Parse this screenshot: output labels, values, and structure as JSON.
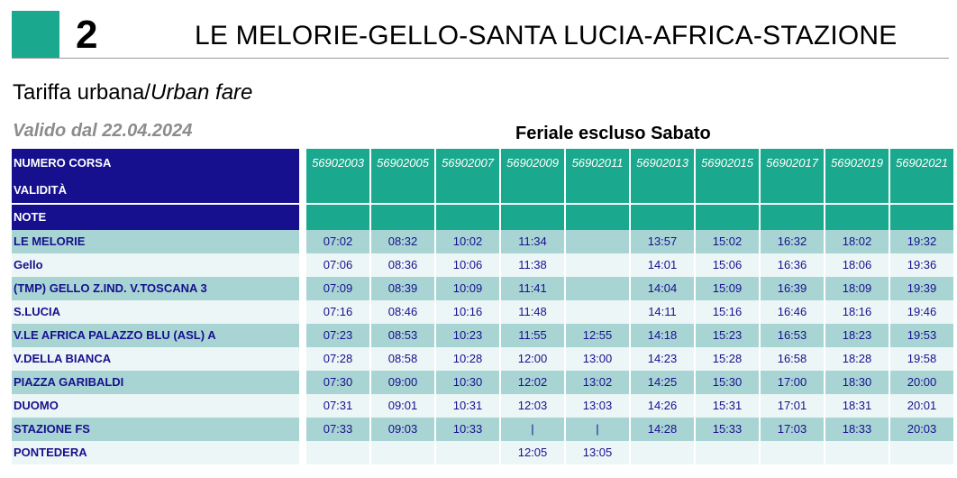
{
  "header": {
    "route_number": "2",
    "route_name": "LE MELORIE-GELLO-SANTA LUCIA-AFRICA-STAZIONE",
    "fare_main": "Tariffa urbana/",
    "fare_english": "Urban fare",
    "valid_from": "Valido dal 22.04.2024",
    "service_day": "Feriale escluso Sabato"
  },
  "colors": {
    "route": "#1aa98e",
    "header_blue": "#16108e",
    "row_dark": "#a9d4d4",
    "row_light": "#edf6f6"
  },
  "labels": {
    "trip_number": "NUMERO CORSA",
    "validity": "VALIDITÀ",
    "notes": "NOTE"
  },
  "trips": [
    "56902003",
    "56902005",
    "56902007",
    "56902009",
    "56902011",
    "56902013",
    "56902015",
    "56902017",
    "56902019",
    "56902021"
  ],
  "stops": [
    {
      "name": "LE MELORIE",
      "times": [
        "07:02",
        "08:32",
        "10:02",
        "11:34",
        "",
        "13:57",
        "15:02",
        "16:32",
        "18:02",
        "19:32"
      ]
    },
    {
      "name": "Gello",
      "times": [
        "07:06",
        "08:36",
        "10:06",
        "11:38",
        "",
        "14:01",
        "15:06",
        "16:36",
        "18:06",
        "19:36"
      ]
    },
    {
      "name": "(TMP) GELLO Z.IND. V.TOSCANA 3",
      "times": [
        "07:09",
        "08:39",
        "10:09",
        "11:41",
        "",
        "14:04",
        "15:09",
        "16:39",
        "18:09",
        "19:39"
      ]
    },
    {
      "name": "S.LUCIA",
      "times": [
        "07:16",
        "08:46",
        "10:16",
        "11:48",
        "",
        "14:11",
        "15:16",
        "16:46",
        "18:16",
        "19:46"
      ]
    },
    {
      "name": "V.LE AFRICA PALAZZO BLU (ASL) A",
      "times": [
        "07:23",
        "08:53",
        "10:23",
        "11:55",
        "12:55",
        "14:18",
        "15:23",
        "16:53",
        "18:23",
        "19:53"
      ]
    },
    {
      "name": "V.DELLA BIANCA",
      "times": [
        "07:28",
        "08:58",
        "10:28",
        "12:00",
        "13:00",
        "14:23",
        "15:28",
        "16:58",
        "18:28",
        "19:58"
      ]
    },
    {
      "name": "PIAZZA GARIBALDI",
      "times": [
        "07:30",
        "09:00",
        "10:30",
        "12:02",
        "13:02",
        "14:25",
        "15:30",
        "17:00",
        "18:30",
        "20:00"
      ]
    },
    {
      "name": "DUOMO",
      "times": [
        "07:31",
        "09:01",
        "10:31",
        "12:03",
        "13:03",
        "14:26",
        "15:31",
        "17:01",
        "18:31",
        "20:01"
      ]
    },
    {
      "name": "STAZIONE FS",
      "times": [
        "07:33",
        "09:03",
        "10:33",
        "|",
        "|",
        "14:28",
        "15:33",
        "17:03",
        "18:33",
        "20:03"
      ]
    },
    {
      "name": "PONTEDERA",
      "times": [
        "",
        "",
        "",
        "12:05",
        "13:05",
        "",
        "",
        "",
        "",
        ""
      ]
    }
  ]
}
